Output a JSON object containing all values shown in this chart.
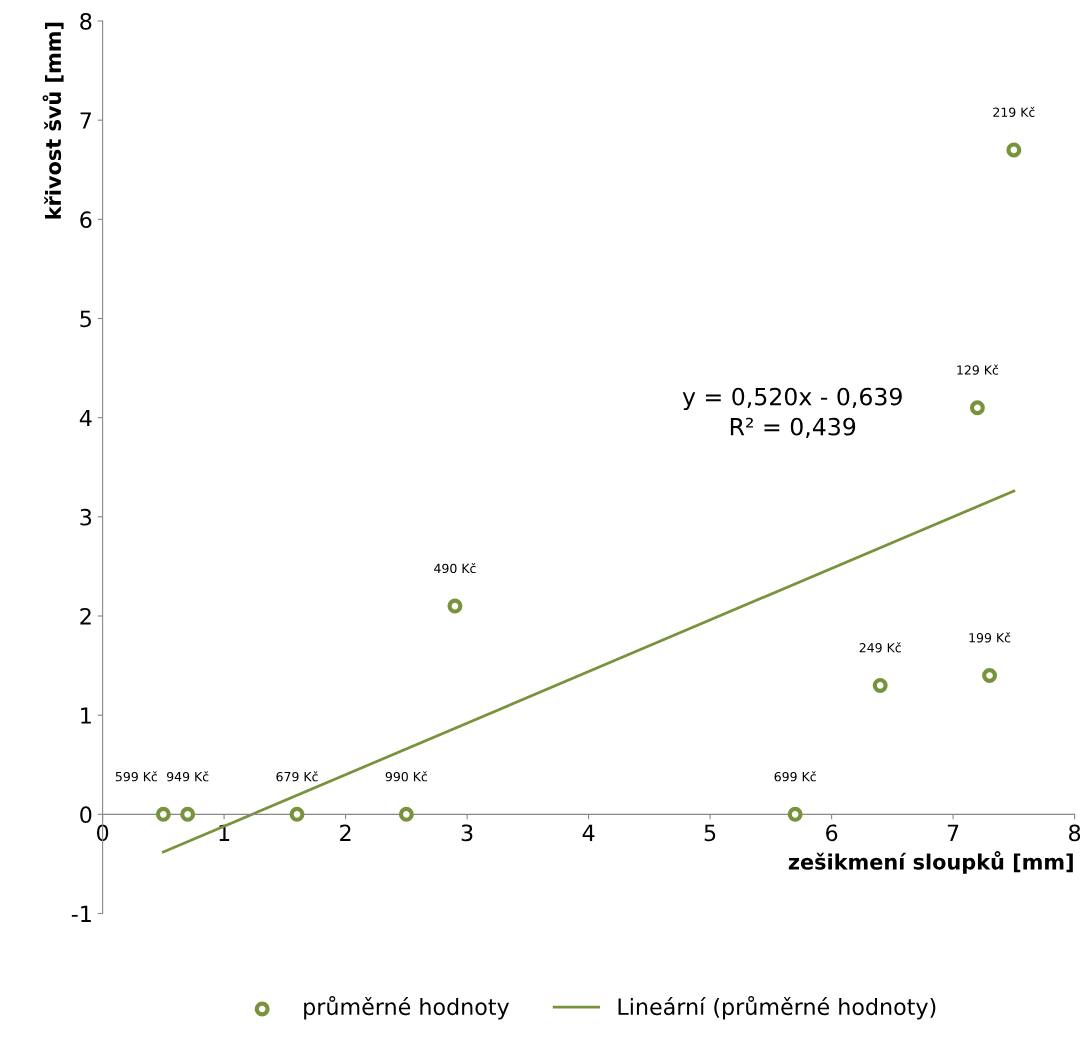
{
  "chart_data": {
    "type": "scatter",
    "xlabel": "zešikmení sloupků [mm]",
    "ylabel": "křivost švů [mm]",
    "x": [
      0.5,
      0.7,
      1.6,
      2.5,
      2.9,
      5.7,
      6.4,
      7.2,
      7.3,
      7.5
    ],
    "series": [
      {
        "name": "průměrné hodnoty",
        "color": "#77933c",
        "marker": "circle",
        "values": [
          0,
          0,
          0,
          0,
          2.1,
          0,
          1.3,
          4.1,
          1.4,
          6.7
        ]
      },
      {
        "name": "Lineární (průměrné hodnoty)",
        "type": "line",
        "color": "#77933c",
        "line_style": "solid",
        "marker": "none",
        "x": [
          0.5,
          7.5
        ],
        "values": [
          -0.38,
          3.26
        ]
      }
    ],
    "annotations": [
      "y = 0,520x - 0,639\nR² = 0,439",
      {
        "text": "599 Kč",
        "x": 0.5,
        "y": 0
      },
      {
        "text": "949 Kč",
        "x": 0.7,
        "y": 0
      },
      {
        "text": "679 Kč",
        "x": 1.6,
        "y": 0
      },
      {
        "text": "990 Kč",
        "x": 2.5,
        "y": 0
      },
      {
        "text": "490 Kč",
        "x": 2.9,
        "y": 2.1
      },
      {
        "text": "699 Kč",
        "x": 5.7,
        "y": 0
      },
      {
        "text": "249 Kč",
        "x": 6.4,
        "y": 1.3
      },
      {
        "text": "129 Kč",
        "x": 7.2,
        "y": 4.1
      },
      {
        "text": "199 Kč",
        "x": 7.3,
        "y": 1.4
      },
      {
        "text": "219 Kč",
        "x": 7.5,
        "y": 6.7
      }
    ],
    "xlim": [
      0,
      8
    ],
    "xticks": [
      0,
      1,
      2,
      3,
      4,
      5,
      6,
      7,
      8
    ],
    "ylim": [
      -1,
      8
    ],
    "yticks": [
      -1,
      0,
      1,
      2,
      3,
      4,
      5,
      6,
      7,
      8
    ],
    "grid": false,
    "legend": "bottom"
  }
}
